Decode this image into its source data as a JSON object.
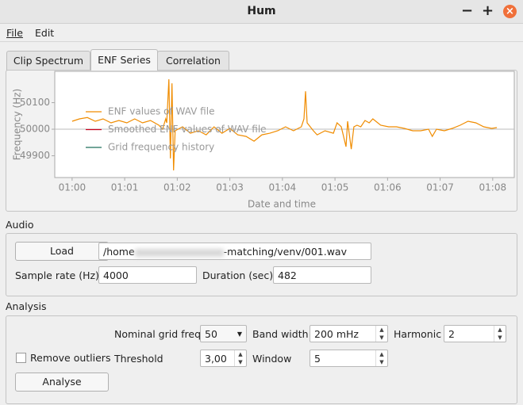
{
  "window": {
    "title": "Hum"
  },
  "menu": [
    "File",
    "Edit"
  ],
  "tabs": [
    "Clip Spectrum",
    "ENF Series",
    "Correlation"
  ],
  "chart_data": {
    "type": "line",
    "y_label": "Frequency (Hz)",
    "x_label": "Date and time",
    "xlim": [
      59.67,
      68.41
    ],
    "ylim": [
      49818,
      50218
    ],
    "xticks": [
      {
        "value": 60,
        "label": "01:00"
      },
      {
        "value": 61,
        "label": "01:01"
      },
      {
        "value": 62,
        "label": "01:02"
      },
      {
        "value": 63,
        "label": "01:03"
      },
      {
        "value": 64,
        "label": "01:04"
      },
      {
        "value": 65,
        "label": "01:05"
      },
      {
        "value": 66,
        "label": "01:06"
      },
      {
        "value": 67,
        "label": "01:07"
      },
      {
        "value": 68,
        "label": "01:08"
      }
    ],
    "yticks": [
      49900,
      50000,
      50100
    ],
    "grid_lines": [
      50000
    ],
    "legend": "upper left",
    "series": [
      {
        "name": "ENF values of WAV file",
        "color": "#f08c00",
        "x": [
          60.0,
          60.14,
          60.29,
          60.44,
          60.59,
          60.74,
          60.89,
          61.04,
          61.19,
          61.34,
          61.49,
          61.65,
          61.72,
          61.78,
          61.8,
          61.84,
          61.87,
          61.9,
          61.93,
          61.96,
          62.1,
          62.25,
          62.4,
          62.55,
          62.7,
          62.85,
          63.0,
          63.15,
          63.31,
          63.46,
          63.61,
          63.76,
          63.91,
          64.06,
          64.21,
          64.36,
          64.41,
          64.44,
          64.47,
          64.59,
          64.66,
          64.81,
          64.97,
          65.04,
          65.12,
          65.21,
          65.24,
          65.31,
          65.36,
          65.42,
          65.49,
          65.57,
          65.65,
          65.72,
          65.87,
          66.02,
          66.17,
          66.32,
          66.48,
          66.63,
          66.78,
          66.85,
          66.93,
          67.08,
          67.23,
          67.38,
          67.53,
          67.68,
          67.83,
          67.98,
          68.08
        ],
        "values": [
          50030,
          50039,
          50044,
          50030,
          50039,
          50024,
          50033,
          50024,
          50039,
          50024,
          50033,
          50015,
          50000,
          50039,
          50024,
          50188,
          49890,
          50173,
          49845,
          49994,
          50009,
          49985,
          49994,
          49979,
          50009,
          49985,
          50003,
          49979,
          49973,
          49955,
          49979,
          49985,
          49994,
          50009,
          49994,
          50009,
          50039,
          50143,
          50024,
          49994,
          49979,
          49994,
          49985,
          50024,
          50009,
          49934,
          50030,
          49925,
          50009,
          50015,
          50009,
          50033,
          50024,
          50039,
          50015,
          50009,
          50009,
          50003,
          49994,
          49994,
          50000,
          49973,
          50000,
          49994,
          50003,
          50015,
          50030,
          50024,
          50009,
          50003,
          50006
        ]
      },
      {
        "name": "Smoothed ENF values of WAV file",
        "color": "#c8001e",
        "x": [],
        "values": []
      },
      {
        "name": "Grid frequency history",
        "color": "#1f6f5c",
        "x": [],
        "values": []
      }
    ]
  },
  "audio": {
    "title": "Audio",
    "load": "Load",
    "path_start": "/home",
    "path_end": "-matching/venv/001.wav",
    "sample_rate_label": "Sample rate (Hz)",
    "sample_rate": "4000",
    "duration_label": "Duration (sec)",
    "duration": "482"
  },
  "analysis": {
    "title": "Analysis",
    "nominal_label": "Nominal grid freq",
    "nominal": "50",
    "band_width_label": "Band width",
    "band_width": "200 mHz",
    "harmonic_label": "Harmonic",
    "harmonic": "2",
    "remove_outliers": "Remove outliers",
    "threshold_label": "Threshold",
    "threshold": "3,00",
    "window_label": "Window",
    "window": "5",
    "analyse": "Analyse"
  }
}
